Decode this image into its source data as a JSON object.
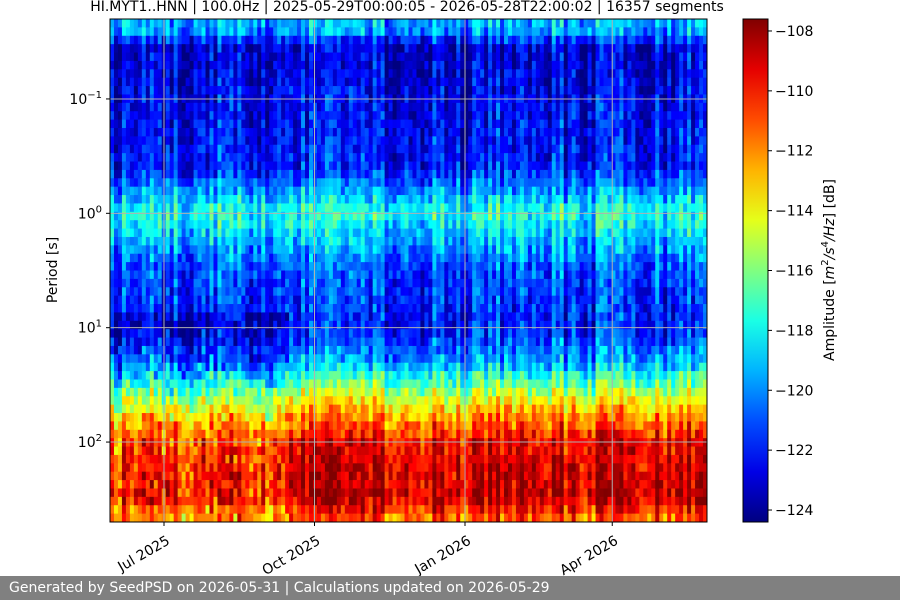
{
  "chart_data": {
    "type": "heatmap",
    "title": "HI.MYT1..HNN | 100.0Hz | 2025-05-29T00:00:05 - 2026-05-28T22:00:02 | 16357 segments",
    "xlabel": "",
    "ylabel": "Period [s]",
    "colorbar_label": "Amplitude [m²/s⁴/Hz] [dB]",
    "colorbar_label_parts": {
      "prefix": "Amplitude [",
      "m": "m",
      "exp1": "2",
      "mid": "/s",
      "exp2": "4",
      "suffix": "/Hz",
      "end": "] [dB]"
    },
    "x_range": [
      "2025-05-29T00:00:05",
      "2026-05-28T22:00:02"
    ],
    "x_ticks": [
      {
        "date": "2025-07-01",
        "label": "Jul 2025"
      },
      {
        "date": "2025-10-01",
        "label": "Oct 2025"
      },
      {
        "date": "2026-01-01",
        "label": "Jan 2026"
      },
      {
        "date": "2026-04-01",
        "label": "Apr 2026"
      }
    ],
    "y_scale": "log",
    "y_inverted": true,
    "y_range": [
      0.02,
      500
    ],
    "y_ticks": [
      {
        "value": 0.1,
        "base": "10",
        "exp": "−1"
      },
      {
        "value": 1,
        "base": "10",
        "exp": "0"
      },
      {
        "value": 10,
        "base": "10",
        "exp": "1"
      },
      {
        "value": 100,
        "base": "10",
        "exp": "2"
      }
    ],
    "color_range": [
      -124.4,
      -107.6
    ],
    "colormap": "jet",
    "colorbar_ticks": [
      -108,
      -110,
      -112,
      -114,
      -116,
      -118,
      -120,
      -122,
      -124
    ],
    "grid": true,
    "period_profile": [
      {
        "period": 0.025,
        "amplitude": -119.5
      },
      {
        "period": 0.035,
        "amplitude": -123.0
      },
      {
        "period": 0.1,
        "amplitude": -122.5
      },
      {
        "period": 0.4,
        "amplitude": -122.0
      },
      {
        "period": 1.0,
        "amplitude": -117.5
      },
      {
        "period": 3.0,
        "amplitude": -121.0
      },
      {
        "period": 10,
        "amplitude": -122.0
      },
      {
        "period": 20,
        "amplitude": -119.5
      },
      {
        "period": 50,
        "amplitude": -113.0
      },
      {
        "period": 100,
        "amplitude": -109.5
      },
      {
        "period": 300,
        "amplitude": -108.5
      },
      {
        "period": 450,
        "amplitude": -111.0
      }
    ]
  },
  "colors": {
    "footer_background": "#808080",
    "footer_text": "#ffffff",
    "grid": "#b0b0b0"
  },
  "footer": {
    "text": "Generated by SeedPSD on 2026-05-31 | Calculations updated on 2026-05-29"
  }
}
